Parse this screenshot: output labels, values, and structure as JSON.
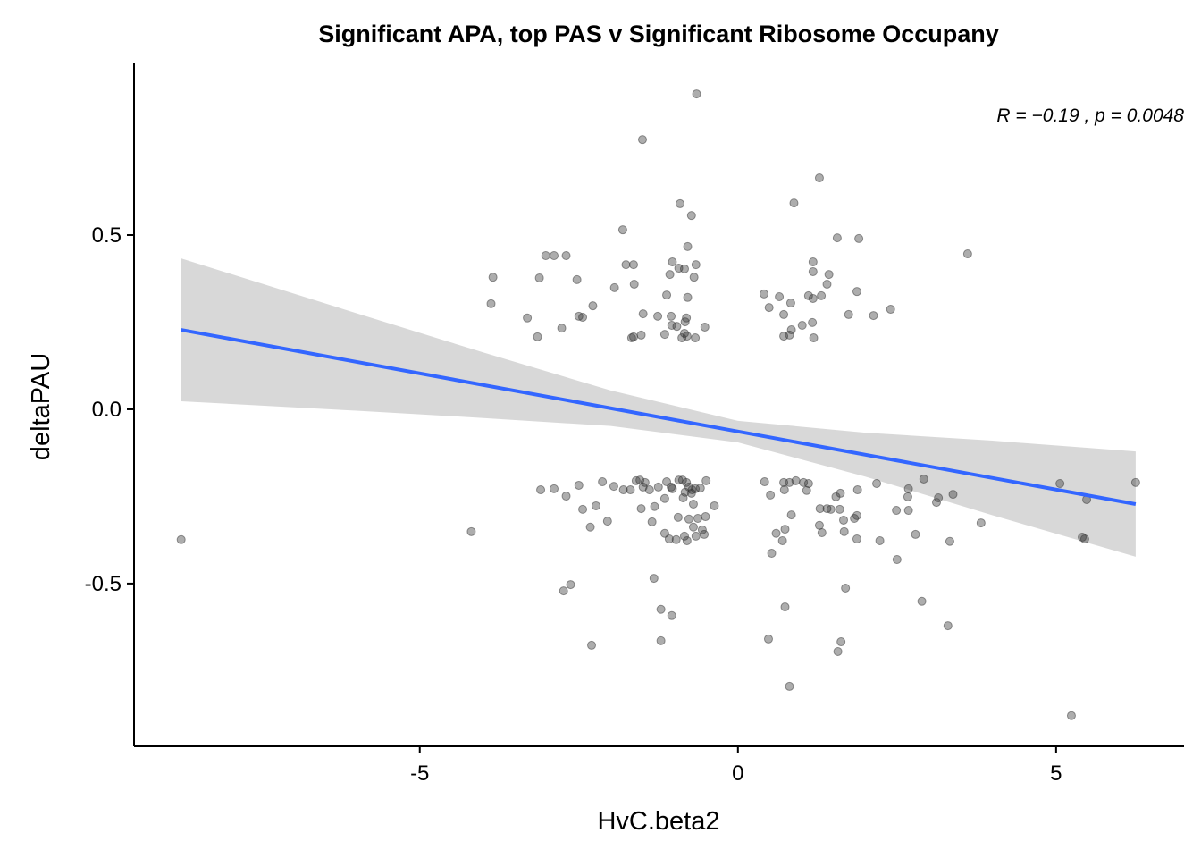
{
  "chart_data": {
    "type": "scatter",
    "title": "Significant  APA, top PAS  v Significant Ribosome Occupany",
    "x_label": "HvC.beta2",
    "y_label": "deltaPAU",
    "annotation": "R = −0.19 , p = 0.0048",
    "color": "#333333",
    "fit_color": "#3366FF",
    "band_color": "#d4d4d4",
    "xlim": [
      -9.49,
      7.01
    ],
    "ylim": [
      -0.967,
      0.995
    ],
    "xticks": [
      -5,
      0,
      5
    ],
    "yticks": [
      -0.5,
      {
        "value": 0,
        "label": "0.0"
      },
      0.5
    ],
    "grid": false,
    "x": [
      -8.75,
      -4.19,
      -0.65,
      -1.5,
      1.28,
      -0.91,
      0.88,
      -0.73,
      -1.81,
      -0.79,
      1.56,
      1.9,
      3.61,
      -3.02,
      -2.89,
      -2.7,
      -1.76,
      -1.64,
      -1.03,
      -0.66,
      1.18,
      -3.85,
      -3.12,
      -2.53,
      -0.93,
      -0.84,
      -1.07,
      -0.69,
      1.18,
      1.43,
      1.4,
      -1.63,
      -1.94,
      -1.12,
      0.41,
      0.65,
      -0.79,
      1.11,
      1.18,
      1.87,
      0.83,
      1.31,
      -3.88,
      -2.28,
      0.49,
      -3.31,
      -2.5,
      -2.44,
      -1.49,
      -1.26,
      -1.05,
      -0.81,
      -0.83,
      0.72,
      2.4,
      2.13,
      1.74,
      -1.04,
      -0.96,
      -0.52,
      1.01,
      1.17,
      -2.77,
      0.84,
      -1.15,
      -0.84,
      -1.52,
      -3.15,
      -1.64,
      -1.67,
      -0.88,
      -0.8,
      -0.67,
      0.72,
      0.81,
      1.19,
      -3.1,
      -2.89,
      -2.7,
      -2.5,
      -2.13,
      -1.95,
      -1.8,
      -1.69,
      -1.6,
      -1.54,
      -1.49,
      -1.46,
      -1.39,
      -1.25,
      -1.12,
      -1.05,
      -1.03,
      -0.93,
      -0.87,
      -0.81,
      -0.77,
      -0.72,
      -0.73,
      -0.83,
      -0.67,
      -0.5,
      -0.59,
      -2.23,
      -2.44,
      -1.15,
      -0.86,
      -0.7,
      -0.37,
      -1.52,
      -1.31,
      -2.05,
      -1.35,
      -0.94,
      -0.77,
      -0.63,
      -0.51,
      -2.32,
      -1.15,
      -1.08,
      -0.84,
      -0.7,
      -0.56,
      -0.53,
      -0.97,
      -0.8,
      -0.66,
      0.42,
      0.72,
      0.81,
      0.91,
      1.03,
      1.11,
      0.73,
      1.08,
      0.51,
      1.54,
      1.61,
      1.88,
      2.18,
      2.68,
      2.67,
      2.92,
      3.15,
      3.38,
      3.12,
      1.29,
      1.4,
      1.46,
      1.6,
      2.49,
      2.68,
      1.83,
      1.87,
      1.66,
      0.84,
      0.74,
      0.6,
      0.7,
      1.28,
      1.32,
      1.67,
      1.87,
      2.23,
      2.79,
      3.33,
      3.82,
      0.53,
      2.5,
      5.06,
      6.25,
      5.48,
      5.41,
      5.45,
      5.24,
      -2.63,
      -2.74,
      -1.32,
      -1.21,
      -1.04,
      -1.21,
      -2.3,
      1.69,
      2.89,
      0.74,
      3.3,
      0.48,
      1.62,
      1.57,
      0.81
    ],
    "values": [
      -0.374,
      -0.351,
      0.905,
      0.774,
      0.664,
      0.59,
      0.592,
      0.556,
      0.515,
      0.467,
      0.492,
      0.49,
      0.446,
      0.441,
      0.441,
      0.441,
      0.415,
      0.415,
      0.423,
      0.415,
      0.423,
      0.379,
      0.377,
      0.372,
      0.405,
      0.403,
      0.387,
      0.379,
      0.395,
      0.387,
      0.359,
      0.359,
      0.349,
      0.328,
      0.331,
      0.323,
      0.321,
      0.326,
      0.318,
      0.338,
      0.305,
      0.326,
      0.303,
      0.297,
      0.292,
      0.262,
      0.267,
      0.264,
      0.274,
      0.267,
      0.267,
      0.262,
      0.251,
      0.272,
      0.287,
      0.269,
      0.272,
      0.241,
      0.238,
      0.236,
      0.241,
      0.249,
      0.233,
      0.228,
      0.215,
      0.218,
      0.213,
      0.208,
      0.208,
      0.205,
      0.205,
      0.21,
      0.205,
      0.21,
      0.213,
      0.205,
      -0.231,
      -0.228,
      -0.249,
      -0.218,
      -0.208,
      -0.221,
      -0.231,
      -0.231,
      -0.205,
      -0.203,
      -0.223,
      -0.21,
      -0.231,
      -0.223,
      -0.208,
      -0.223,
      -0.228,
      -0.203,
      -0.203,
      -0.21,
      -0.223,
      -0.231,
      -0.241,
      -0.238,
      -0.228,
      -0.205,
      -0.226,
      -0.277,
      -0.287,
      -0.256,
      -0.254,
      -0.272,
      -0.277,
      -0.285,
      -0.279,
      -0.321,
      -0.323,
      -0.31,
      -0.315,
      -0.313,
      -0.308,
      -0.338,
      -0.356,
      -0.372,
      -0.364,
      -0.338,
      -0.346,
      -0.359,
      -0.374,
      -0.377,
      -0.364,
      -0.208,
      -0.21,
      -0.21,
      -0.205,
      -0.21,
      -0.213,
      -0.231,
      -0.233,
      -0.246,
      -0.251,
      -0.241,
      -0.231,
      -0.213,
      -0.228,
      -0.251,
      -0.2,
      -0.254,
      -0.244,
      -0.267,
      -0.285,
      -0.285,
      -0.287,
      -0.287,
      -0.29,
      -0.29,
      -0.313,
      -0.305,
      -0.318,
      -0.303,
      -0.344,
      -0.356,
      -0.377,
      -0.333,
      -0.354,
      -0.351,
      -0.372,
      -0.377,
      -0.359,
      -0.379,
      -0.326,
      -0.413,
      -0.431,
      -0.213,
      -0.21,
      -0.259,
      -0.367,
      -0.372,
      -0.879,
      -0.503,
      -0.521,
      -0.485,
      -0.574,
      -0.592,
      -0.664,
      -0.677,
      -0.513,
      -0.551,
      -0.567,
      -0.621,
      -0.659,
      -0.667,
      -0.695,
      -0.795
    ],
    "fit": {
      "x": [
        -8.75,
        6.25
      ],
      "y": [
        0.228,
        -0.272
      ]
    },
    "band": {
      "x": [
        -8.75,
        -6,
        -4,
        -2,
        0,
        2,
        4,
        6.25
      ],
      "upper": [
        0.433,
        0.276,
        0.163,
        0.054,
        -0.033,
        -0.067,
        -0.09,
        -0.121
      ],
      "lower": [
        0.023,
        -0.004,
        -0.025,
        -0.048,
        -0.095,
        -0.193,
        -0.304,
        -0.423
      ]
    }
  }
}
